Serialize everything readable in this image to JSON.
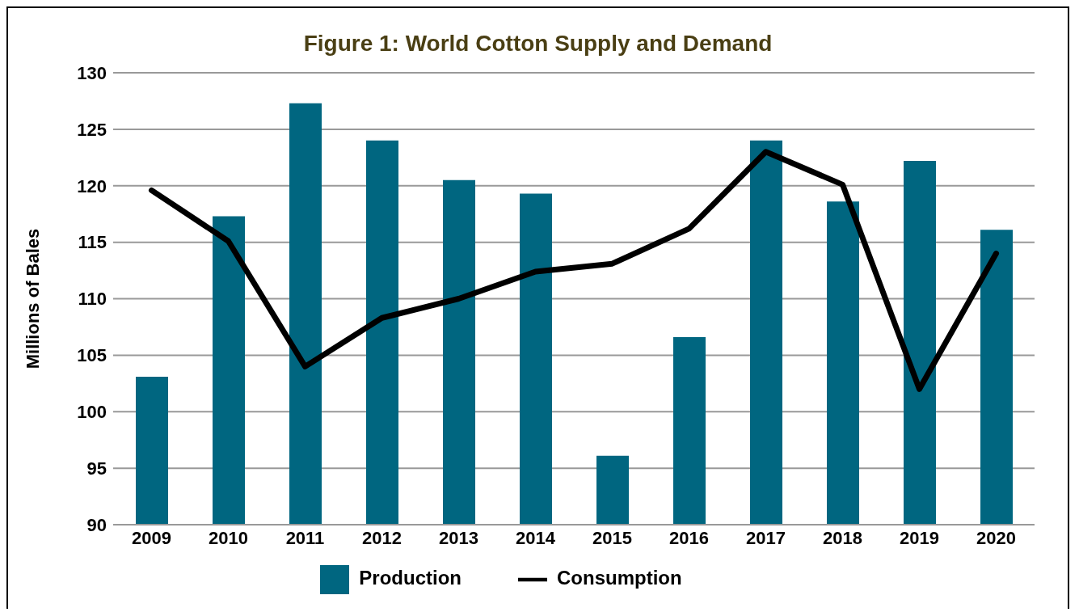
{
  "chart_data": {
    "type": "bar",
    "title": "Figure 1: World Cotton Supply and Demand",
    "ylabel": "Millions of Bales",
    "categories": [
      "2009",
      "2010",
      "2011",
      "2012",
      "2013",
      "2014",
      "2015",
      "2016",
      "2017",
      "2018",
      "2019",
      "2020"
    ],
    "series": [
      {
        "name": "Production",
        "color": "#006680",
        "values": [
          103.1,
          117.3,
          127.3,
          124.0,
          120.5,
          119.3,
          96.1,
          106.6,
          124.0,
          118.6,
          122.2,
          116.1
        ]
      },
      {
        "name": "Consumption",
        "type": "line",
        "color": "#000000",
        "values": [
          119.6,
          115.1,
          104.0,
          108.3,
          110.0,
          112.4,
          113.1,
          116.2,
          123.0,
          120.1,
          102.0,
          114.0
        ]
      }
    ],
    "ylim": [
      90,
      130
    ],
    "yticks": [
      90,
      95,
      100,
      105,
      110,
      115,
      120,
      125,
      130
    ],
    "grid": "y",
    "legend": "bottom",
    "marker": "none",
    "line_style": "solid"
  }
}
